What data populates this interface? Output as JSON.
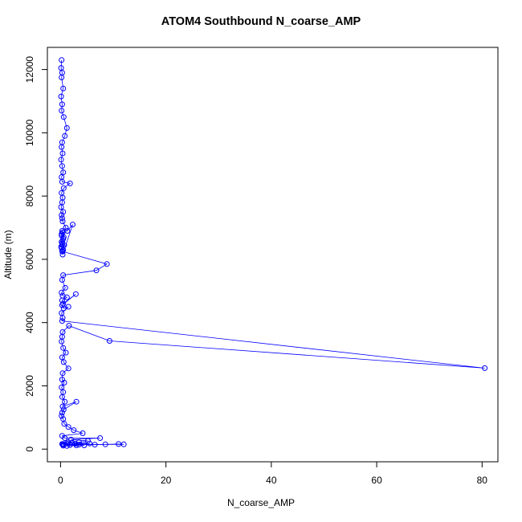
{
  "chart_data": {
    "type": "scatter",
    "title": "ATOM4 Southbound N_coarse_AMP",
    "xlabel": "N_coarse_AMP",
    "ylabel": "Altitude (m)",
    "xlim": [
      -2.5,
      83
    ],
    "ylim": [
      -400,
      12700
    ],
    "xticks": [
      0,
      20,
      40,
      60,
      80
    ],
    "yticks": [
      0,
      2000,
      4000,
      6000,
      8000,
      10000,
      12000
    ],
    "grid": false,
    "legend": "none",
    "series_color": "#0000ff",
    "x": [
      0.2,
      0.1,
      0.3,
      0.2,
      0.5,
      0.1,
      0.3,
      0.2,
      0.6,
      1.2,
      0.8,
      0.3,
      0.2,
      0.4,
      0.1,
      0.3,
      0.5,
      0.2,
      0.3,
      1.8,
      0.6,
      0.2,
      0.4,
      0.3,
      0.1,
      0.5,
      0.2,
      0.3,
      0.4,
      1.0,
      0.3,
      0.2,
      0.6,
      0.4,
      0.2,
      0.3,
      0.1,
      0.5,
      0.3,
      0.4,
      2.3,
      1.3,
      0.4,
      0.2,
      0.5,
      0.3,
      0.7,
      0.2,
      0.4,
      8.8,
      6.8,
      0.5,
      0.3,
      0.9,
      0.2,
      0.4,
      1.2,
      0.3,
      0.5,
      2.9,
      0.3,
      0.6,
      1.5,
      0.2,
      0.4,
      0.3,
      80.5,
      9.3,
      1.6,
      0.4,
      0.3,
      0.2,
      0.5,
      1.0,
      0.3,
      0.6,
      1.5,
      0.4,
      0.3,
      0.7,
      0.2,
      0.5,
      0.3,
      0.8,
      0.4,
      3.0,
      0.6,
      0.3,
      0.2,
      0.5,
      0.7,
      1.5,
      2.5,
      4.2,
      0.3,
      0.8,
      7.5,
      2.0,
      5.2,
      3.5,
      1.2,
      0.6,
      0.4,
      6.5,
      11.0,
      12.0,
      8.5,
      3.5,
      1.8,
      4.5,
      2.2,
      5.5,
      2.8,
      1.5,
      0.3,
      0.6,
      3.0,
      1.2,
      0.5
    ],
    "y": [
      12300,
      12050,
      11900,
      11750,
      11400,
      11150,
      10900,
      10700,
      10500,
      10150,
      9900,
      9700,
      9550,
      9350,
      9150,
      8950,
      8750,
      8600,
      8450,
      8400,
      8250,
      8100,
      7950,
      7800,
      7650,
      7500,
      7400,
      7300,
      7200,
      7000,
      6900,
      6800,
      6700,
      6600,
      6550,
      6450,
      6400,
      6300,
      6250,
      6150,
      7100,
      6900,
      6850,
      6750,
      6650,
      6500,
      6450,
      6350,
      6250,
      5850,
      5650,
      5500,
      5350,
      5100,
      4950,
      4850,
      4800,
      4700,
      4600,
      4900,
      4550,
      4450,
      4500,
      4300,
      4150,
      4050,
      2560,
      3420,
      3900,
      3700,
      3550,
      3400,
      3200,
      3050,
      2900,
      2750,
      2550,
      2400,
      2200,
      2100,
      1950,
      1800,
      1650,
      1500,
      1350,
      1500,
      1250,
      1150,
      1050,
      950,
      800,
      700,
      600,
      500,
      420,
      350,
      350,
      300,
      260,
      220,
      180,
      160,
      150,
      140,
      160,
      150,
      150,
      140,
      130,
      120,
      200,
      180,
      170,
      220,
      160,
      140,
      120,
      100,
      110
    ]
  }
}
